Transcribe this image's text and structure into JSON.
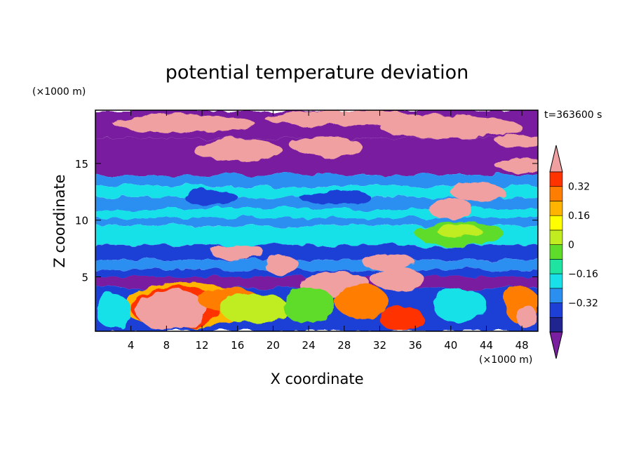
{
  "chart_data": {
    "type": "heatmap",
    "title": "potential temperature deviation",
    "xlabel": "X coordinate",
    "ylabel": "Z coordinate",
    "x_unit": "(×1000 m)",
    "y_unit": "(×1000 m)",
    "time_label": "t=363600 s",
    "xlim": [
      0,
      49.8
    ],
    "ylim": [
      0.2,
      19.7
    ],
    "x_ticks": [
      "4",
      "8",
      "12",
      "16",
      "20",
      "24",
      "28",
      "32",
      "36",
      "40",
      "44",
      "48"
    ],
    "y_ticks": [
      "5",
      "10",
      "15"
    ],
    "colorbar": {
      "levels": [
        "0.32",
        "0.16",
        "0",
        "−0.16",
        "−0.32"
      ],
      "colors": [
        "#7a1fa0",
        "#20248e",
        "#1e3fd6",
        "#2b8ff0",
        "#19e0e8",
        "#1fe3a0",
        "#5fdc29",
        "#c0ec20",
        "#ffff00",
        "#ffb400",
        "#ff7d00",
        "#ff3300",
        "#f0a0a0"
      ],
      "extend": "both"
    },
    "bands": [
      {
        "z": [
          17.2,
          19.7
        ],
        "color": "#7a1fa0"
      },
      {
        "z": [
          14.0,
          17.2
        ],
        "color": "#7a1fa0"
      },
      {
        "z": [
          13.0,
          14.0
        ],
        "color": "#2b8ff0"
      },
      {
        "z": [
          12.0,
          13.0
        ],
        "color": "#19e0e8"
      },
      {
        "z": [
          11.0,
          12.0
        ],
        "color": "#2b8ff0"
      },
      {
        "z": [
          10.2,
          11.0
        ],
        "color": "#19e0e8"
      },
      {
        "z": [
          9.5,
          10.2
        ],
        "color": "#2b8ff0"
      },
      {
        "z": [
          7.8,
          9.5
        ],
        "color": "#19e0e8"
      },
      {
        "z": [
          6.5,
          7.8
        ],
        "color": "#1e3fd6"
      },
      {
        "z": [
          5.6,
          6.5
        ],
        "color": "#2b8ff0"
      },
      {
        "z": [
          5.0,
          5.6
        ],
        "color": "#1e3fd6"
      },
      {
        "z": [
          4.0,
          5.0
        ],
        "color": "#7a1fa0"
      },
      {
        "z": [
          0.2,
          4.0
        ],
        "color": "#1e3fd6"
      }
    ],
    "blobs": [
      {
        "x": 10,
        "z": 18.5,
        "rx": 8,
        "rz": 0.8,
        "color": "#f0a0a0"
      },
      {
        "x": 28,
        "z": 19.0,
        "rx": 9,
        "rz": 0.7,
        "color": "#f0a0a0"
      },
      {
        "x": 40,
        "z": 18.2,
        "rx": 8,
        "rz": 1.0,
        "color": "#f0a0a0"
      },
      {
        "x": 48,
        "z": 17.0,
        "rx": 3,
        "rz": 0.6,
        "color": "#f0a0a0"
      },
      {
        "x": 16,
        "z": 16.2,
        "rx": 5,
        "rz": 1.0,
        "color": "#f0a0a0"
      },
      {
        "x": 26,
        "z": 16.5,
        "rx": 4,
        "rz": 0.9,
        "color": "#f0a0a0"
      },
      {
        "x": 48,
        "z": 14.8,
        "rx": 3,
        "rz": 0.6,
        "color": "#f0a0a0"
      },
      {
        "x": 13,
        "z": 12.0,
        "rx": 3,
        "rz": 0.7,
        "color": "#1e3fd6"
      },
      {
        "x": 27,
        "z": 12.0,
        "rx": 4,
        "rz": 0.6,
        "color": "#1e3fd6"
      },
      {
        "x": 43,
        "z": 12.5,
        "rx": 3,
        "rz": 0.9,
        "color": "#f0a0a0"
      },
      {
        "x": 40,
        "z": 11.0,
        "rx": 2.5,
        "rz": 0.9,
        "color": "#f0a0a0"
      },
      {
        "x": 41,
        "z": 8.8,
        "rx": 5,
        "rz": 1.0,
        "color": "#5fdc29"
      },
      {
        "x": 41,
        "z": 9.0,
        "rx": 2.5,
        "rz": 0.6,
        "color": "#c0ec20"
      },
      {
        "x": 16,
        "z": 7.2,
        "rx": 3,
        "rz": 0.7,
        "color": "#f0a0a0"
      },
      {
        "x": 21,
        "z": 6.0,
        "rx": 2,
        "rz": 0.8,
        "color": "#f0a0a0"
      },
      {
        "x": 33,
        "z": 6.3,
        "rx": 3,
        "rz": 0.7,
        "color": "#f0a0a0"
      },
      {
        "x": 27,
        "z": 4.3,
        "rx": 4,
        "rz": 1.2,
        "color": "#f0a0a0"
      },
      {
        "x": 34,
        "z": 4.8,
        "rx": 3,
        "rz": 1.0,
        "color": "#f0a0a0"
      },
      {
        "x": 10,
        "z": 2.5,
        "rx": 7,
        "rz": 2.0,
        "color": "#ffb400"
      },
      {
        "x": 9,
        "z": 2.3,
        "rx": 5,
        "rz": 1.9,
        "color": "#ff3300"
      },
      {
        "x": 8.5,
        "z": 2.1,
        "rx": 4,
        "rz": 1.8,
        "color": "#f0a0a0"
      },
      {
        "x": 15,
        "z": 3.0,
        "rx": 3.5,
        "rz": 1.0,
        "color": "#ff7d00"
      },
      {
        "x": 18,
        "z": 2.2,
        "rx": 4,
        "rz": 1.3,
        "color": "#c0ec20"
      },
      {
        "x": 24,
        "z": 2.5,
        "rx": 3,
        "rz": 1.6,
        "color": "#5fdc29"
      },
      {
        "x": 30,
        "z": 2.8,
        "rx": 3,
        "rz": 1.5,
        "color": "#ff7d00"
      },
      {
        "x": 34.5,
        "z": 1.3,
        "rx": 2.5,
        "rz": 1.1,
        "color": "#ff3300"
      },
      {
        "x": 41,
        "z": 2.5,
        "rx": 3,
        "rz": 1.6,
        "color": "#19e0e8"
      },
      {
        "x": 48,
        "z": 2.5,
        "rx": 2,
        "rz": 1.6,
        "color": "#ff7d00"
      },
      {
        "x": 48.5,
        "z": 1.5,
        "rx": 1.2,
        "rz": 1.0,
        "color": "#f0a0a0"
      },
      {
        "x": 2,
        "z": 2.0,
        "rx": 2,
        "rz": 1.5,
        "color": "#19e0e8"
      }
    ]
  }
}
